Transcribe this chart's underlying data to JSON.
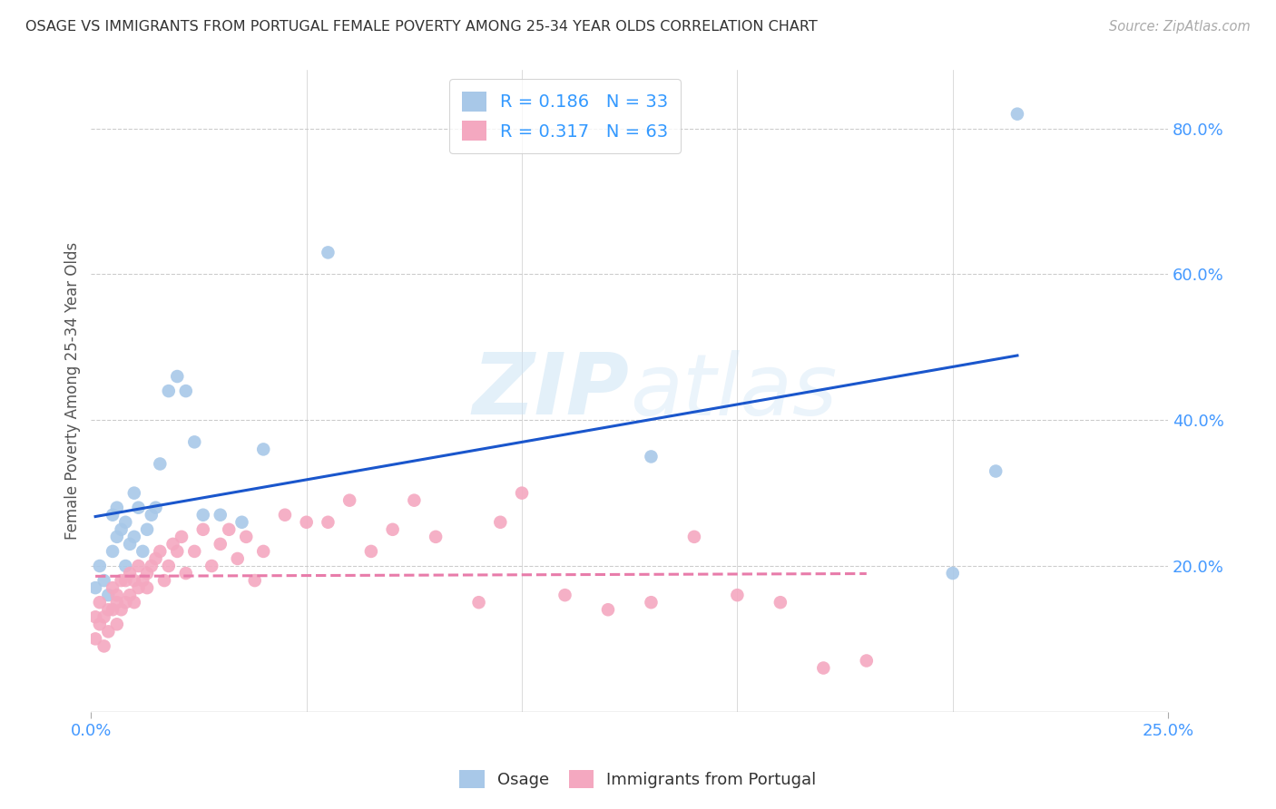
{
  "title": "OSAGE VS IMMIGRANTS FROM PORTUGAL FEMALE POVERTY AMONG 25-34 YEAR OLDS CORRELATION CHART",
  "source": "Source: ZipAtlas.com",
  "ylabel": "Female Poverty Among 25-34 Year Olds",
  "ylabel_right_ticks": [
    "80.0%",
    "60.0%",
    "40.0%",
    "20.0%"
  ],
  "ylabel_right_vals": [
    0.8,
    0.6,
    0.4,
    0.2
  ],
  "osage_color": "#a8c8e8",
  "portugal_color": "#f4a8c0",
  "osage_line_color": "#1a56cc",
  "portugal_line_color": "#e87caa",
  "background_color": "#ffffff",
  "xlim": [
    0.0,
    0.25
  ],
  "ylim": [
    0.0,
    0.88
  ],
  "osage_x": [
    0.001,
    0.002,
    0.003,
    0.004,
    0.005,
    0.005,
    0.006,
    0.006,
    0.007,
    0.008,
    0.008,
    0.009,
    0.01,
    0.01,
    0.011,
    0.012,
    0.013,
    0.014,
    0.015,
    0.016,
    0.018,
    0.02,
    0.022,
    0.024,
    0.026,
    0.03,
    0.035,
    0.04,
    0.055,
    0.13,
    0.2,
    0.21,
    0.215
  ],
  "osage_y": [
    0.17,
    0.2,
    0.18,
    0.16,
    0.27,
    0.22,
    0.28,
    0.24,
    0.25,
    0.26,
    0.2,
    0.23,
    0.3,
    0.24,
    0.28,
    0.22,
    0.25,
    0.27,
    0.28,
    0.34,
    0.44,
    0.46,
    0.44,
    0.37,
    0.27,
    0.27,
    0.26,
    0.36,
    0.63,
    0.35,
    0.19,
    0.33,
    0.82
  ],
  "portugal_x": [
    0.001,
    0.001,
    0.002,
    0.002,
    0.003,
    0.003,
    0.004,
    0.004,
    0.005,
    0.005,
    0.006,
    0.006,
    0.006,
    0.007,
    0.007,
    0.008,
    0.008,
    0.009,
    0.009,
    0.01,
    0.01,
    0.011,
    0.011,
    0.012,
    0.013,
    0.013,
    0.014,
    0.015,
    0.016,
    0.017,
    0.018,
    0.019,
    0.02,
    0.021,
    0.022,
    0.024,
    0.026,
    0.028,
    0.03,
    0.032,
    0.034,
    0.036,
    0.038,
    0.04,
    0.045,
    0.05,
    0.055,
    0.06,
    0.065,
    0.07,
    0.075,
    0.08,
    0.09,
    0.095,
    0.1,
    0.11,
    0.12,
    0.13,
    0.14,
    0.15,
    0.16,
    0.17,
    0.18
  ],
  "portugal_y": [
    0.1,
    0.13,
    0.12,
    0.15,
    0.09,
    0.13,
    0.11,
    0.14,
    0.14,
    0.17,
    0.12,
    0.15,
    0.16,
    0.14,
    0.18,
    0.15,
    0.18,
    0.16,
    0.19,
    0.15,
    0.18,
    0.17,
    0.2,
    0.18,
    0.17,
    0.19,
    0.2,
    0.21,
    0.22,
    0.18,
    0.2,
    0.23,
    0.22,
    0.24,
    0.19,
    0.22,
    0.25,
    0.2,
    0.23,
    0.25,
    0.21,
    0.24,
    0.18,
    0.22,
    0.27,
    0.26,
    0.26,
    0.29,
    0.22,
    0.25,
    0.29,
    0.24,
    0.15,
    0.26,
    0.3,
    0.16,
    0.14,
    0.15,
    0.24,
    0.16,
    0.15,
    0.06,
    0.07
  ]
}
